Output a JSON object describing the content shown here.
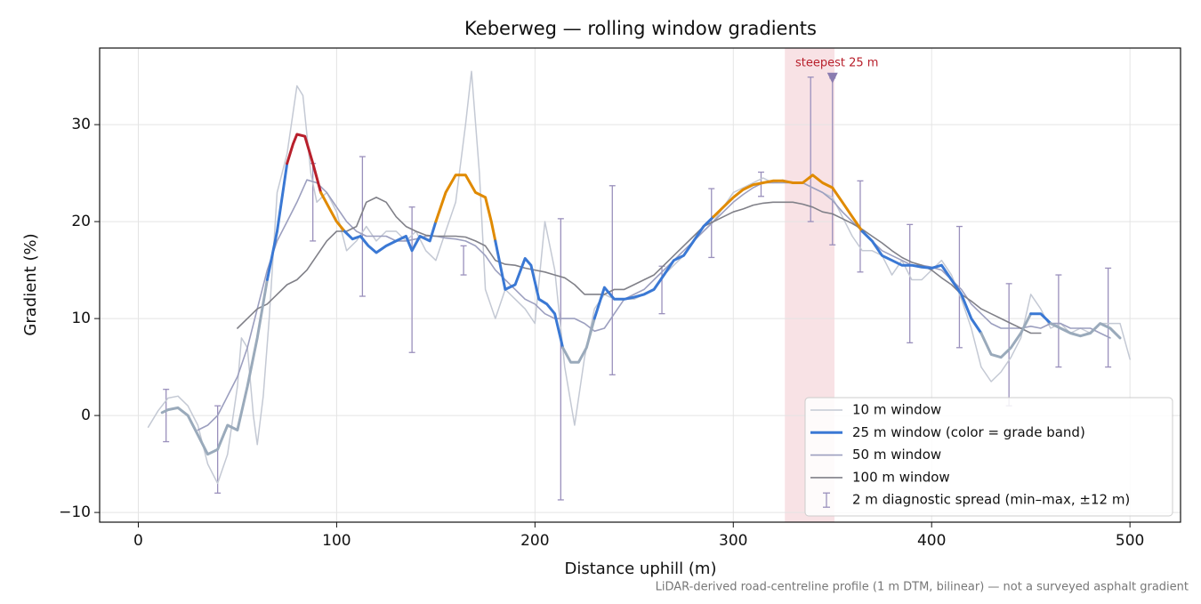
{
  "chart_data": {
    "type": "line",
    "title": "Keberweg — rolling window gradients",
    "x_label": "Distance uphill (m)",
    "y_label": "Gradient (%)",
    "footnote": "LiDAR-derived road-centreline profile (1 m DTM, bilinear) — not a surveyed asphalt gradient",
    "xlim": [
      -19.5,
      525.5
    ],
    "ylim": [
      -11,
      37.9
    ],
    "xticks": [
      0,
      100,
      200,
      300,
      400,
      500
    ],
    "yticks": [
      {
        "value": -10,
        "label": "−10"
      },
      0,
      10,
      20,
      30
    ],
    "grid": true,
    "legend": "lower right",
    "grade_bands": {
      "thresholds": [
        10,
        20,
        25
      ],
      "colors": [
        "#9aaabb",
        "#3a78d4",
        "#e08a00",
        "#b8202c"
      ]
    },
    "shaded_span": [
      326,
      351
    ],
    "annotation": {
      "text": "steepest 25 m",
      "x": 350,
      "y": 34.8,
      "color": "#b8202c"
    },
    "series": [
      {
        "name": "10 m window",
        "color": "#c4c9d4",
        "width": 1.5,
        "x": [
          5,
          10,
          15,
          20,
          25,
          30,
          35,
          40,
          45,
          50,
          52,
          55,
          58,
          60,
          63,
          66,
          70,
          75,
          80,
          83,
          87,
          90,
          95,
          100,
          105,
          110,
          115,
          120,
          125,
          130,
          135,
          140,
          145,
          150,
          155,
          160,
          165,
          168,
          172,
          175,
          180,
          185,
          190,
          195,
          200,
          205,
          210,
          215,
          220,
          225,
          230,
          235,
          240,
          245,
          250,
          255,
          260,
          265,
          270,
          275,
          280,
          285,
          290,
          295,
          300,
          305,
          310,
          315,
          320,
          325,
          330,
          335,
          340,
          345,
          350,
          355,
          360,
          365,
          370,
          375,
          380,
          385,
          390,
          395,
          400,
          405,
          410,
          415,
          420,
          425,
          430,
          435,
          440,
          445,
          450,
          455,
          460,
          465,
          470,
          475,
          480,
          485,
          490,
          495,
          500
        ],
        "values": [
          -1.2,
          0.5,
          1.8,
          2,
          1,
          -1,
          -5,
          -7,
          -4,
          3,
          8,
          7,
          0,
          -3,
          2,
          10,
          23,
          27,
          34,
          33,
          25,
          22,
          23,
          21,
          17,
          18,
          19.5,
          18,
          19,
          19,
          18,
          19,
          17,
          16,
          19,
          22,
          30,
          35.5,
          25,
          13,
          10,
          13,
          12,
          11,
          9.5,
          20,
          15,
          5,
          -1,
          6,
          11,
          12.5,
          12,
          12,
          12,
          12.5,
          13,
          14.5,
          15.5,
          16.5,
          18,
          19,
          20,
          21.5,
          23,
          23.5,
          24,
          24.5,
          24,
          24.3,
          24,
          24,
          23.5,
          23,
          22.5,
          20.5,
          18.5,
          17,
          17,
          16.5,
          14.5,
          16,
          14,
          14,
          15,
          16,
          14.5,
          12,
          9,
          5,
          3.5,
          4.5,
          6,
          8,
          12.5,
          11,
          9,
          9.5,
          8.5,
          9,
          8.5,
          9.5,
          9.5,
          9.5,
          5.8
        ]
      },
      {
        "name": "25 m window (color = grade band)",
        "color": "#3a78d4",
        "width": 3,
        "banded": true,
        "x": [
          12,
          15,
          20,
          25,
          30,
          35,
          40,
          45,
          50,
          55,
          60,
          65,
          70,
          75,
          78,
          80,
          84,
          88,
          92,
          96,
          100,
          104,
          108,
          112,
          116,
          120,
          125,
          130,
          135,
          138,
          142,
          147,
          150,
          155,
          160,
          165,
          170,
          175,
          178,
          180,
          185,
          190,
          195,
          198,
          202,
          206,
          210,
          214,
          218,
          222,
          226,
          230,
          235,
          240,
          245,
          250,
          255,
          260,
          265,
          270,
          275,
          280,
          285,
          290,
          295,
          300,
          305,
          310,
          315,
          320,
          325,
          330,
          335,
          340,
          345,
          350,
          355,
          360,
          365,
          370,
          375,
          380,
          385,
          390,
          395,
          400,
          405,
          410,
          415,
          420,
          425,
          430,
          435,
          440,
          445,
          450,
          455,
          460,
          465,
          470,
          475,
          480,
          485,
          490,
          495
        ],
        "values": [
          0.3,
          0.6,
          0.8,
          0,
          -2,
          -4,
          -3.5,
          -1,
          -1.5,
          3,
          8,
          14,
          19,
          26,
          28,
          29,
          28.8,
          26,
          23,
          21.5,
          20,
          19,
          18.2,
          18.5,
          17.5,
          16.8,
          17.5,
          18,
          18.5,
          17,
          18.5,
          18,
          20,
          23,
          24.8,
          24.8,
          23,
          22.5,
          20,
          18,
          13,
          13.5,
          16.2,
          15.5,
          12,
          11.5,
          10.5,
          7,
          5.5,
          5.5,
          7,
          10,
          13.2,
          12,
          12,
          12.2,
          12.5,
          13,
          14.5,
          16,
          16.5,
          18,
          19.5,
          20.5,
          21.5,
          22.5,
          23.3,
          23.8,
          24,
          24.2,
          24.2,
          24,
          24,
          24.8,
          24,
          23.5,
          22,
          20.5,
          19,
          18,
          16.5,
          16,
          15.5,
          15.5,
          15.3,
          15.2,
          15.5,
          14,
          12.5,
          10,
          8.5,
          6.3,
          6,
          7,
          8.5,
          10.5,
          10.5,
          9.5,
          9,
          8.5,
          8.2,
          8.5,
          9.5,
          9,
          8
        ]
      },
      {
        "name": "50 m window",
        "color": "#9c9fbf",
        "width": 1.6,
        "x": [
          30,
          35,
          40,
          45,
          50,
          55,
          60,
          65,
          70,
          75,
          80,
          85,
          90,
          95,
          100,
          105,
          110,
          115,
          120,
          125,
          130,
          135,
          140,
          145,
          150,
          155,
          160,
          165,
          170,
          175,
          180,
          185,
          190,
          195,
          200,
          205,
          210,
          215,
          220,
          225,
          230,
          235,
          240,
          245,
          250,
          255,
          260,
          265,
          270,
          275,
          280,
          285,
          290,
          295,
          300,
          305,
          310,
          315,
          320,
          325,
          330,
          335,
          340,
          345,
          350,
          355,
          360,
          365,
          370,
          375,
          380,
          385,
          390,
          395,
          400,
          405,
          410,
          415,
          420,
          425,
          430,
          435,
          440,
          445,
          450,
          455,
          460,
          465,
          470,
          475,
          480,
          485,
          490
        ],
        "values": [
          -1.5,
          -1,
          0,
          2,
          4,
          7,
          11,
          15,
          18,
          20,
          22,
          24.3,
          24,
          23,
          21.5,
          20,
          19,
          18.5,
          18.5,
          18.5,
          18,
          18,
          18.2,
          18.5,
          18.5,
          18.3,
          18.2,
          18,
          17.5,
          16.5,
          15,
          14,
          13,
          12,
          11.5,
          10.5,
          10,
          10,
          10,
          9.5,
          8.7,
          9,
          10.5,
          12,
          12.5,
          13,
          14,
          15,
          16,
          17,
          18,
          19,
          20,
          21,
          22,
          22.8,
          23.5,
          24,
          24,
          24,
          24,
          24,
          23.5,
          23,
          22.2,
          21,
          20,
          19,
          18,
          17,
          16.5,
          16,
          15.5,
          15.5,
          15.3,
          15,
          14,
          13,
          11.5,
          10.5,
          9.5,
          9,
          9,
          9,
          9.2,
          9,
          9.5,
          9.5,
          9,
          9,
          9,
          8.5,
          8
        ]
      },
      {
        "name": "100 m window",
        "color": "#808088",
        "width": 1.6,
        "x": [
          50,
          55,
          60,
          65,
          70,
          75,
          80,
          85,
          90,
          95,
          100,
          105,
          110,
          115,
          120,
          125,
          130,
          135,
          140,
          145,
          150,
          155,
          160,
          165,
          170,
          175,
          180,
          185,
          190,
          195,
          200,
          205,
          210,
          215,
          220,
          225,
          230,
          235,
          240,
          245,
          250,
          255,
          260,
          265,
          270,
          275,
          280,
          285,
          290,
          295,
          300,
          305,
          310,
          315,
          320,
          325,
          330,
          335,
          340,
          345,
          350,
          355,
          360,
          365,
          370,
          375,
          380,
          385,
          390,
          395,
          400,
          405,
          410,
          415,
          420,
          425,
          430,
          435,
          440,
          445,
          450,
          455
        ],
        "values": [
          9,
          10,
          11,
          11.5,
          12.5,
          13.5,
          14,
          15,
          16.5,
          18,
          19,
          19,
          19.5,
          22,
          22.5,
          22,
          20.5,
          19.5,
          19,
          18.6,
          18.5,
          18.5,
          18.5,
          18.4,
          18,
          17.5,
          16,
          15.6,
          15.5,
          15.2,
          15,
          14.8,
          14.5,
          14.2,
          13.5,
          12.5,
          12.5,
          12.5,
          13,
          13,
          13.5,
          14,
          14.5,
          15.5,
          16.5,
          17.5,
          18.5,
          19.5,
          20,
          20.5,
          21,
          21.3,
          21.7,
          21.9,
          22,
          22,
          22,
          21.8,
          21.5,
          21,
          20.8,
          20.3,
          19.8,
          19.2,
          18.5,
          17.8,
          17,
          16.3,
          15.8,
          15.5,
          15,
          14.2,
          13.5,
          12.5,
          11.8,
          11,
          10.5,
          10,
          9.5,
          9,
          8.5,
          8.5
        ]
      }
    ],
    "errorbars": {
      "name": "2 m diagnostic spread (min–max, ±12 m)",
      "color": "#9a90bc",
      "x": [
        14,
        40,
        88,
        113,
        138,
        164,
        213,
        239,
        264,
        289,
        314,
        339,
        350,
        364,
        389,
        414,
        439,
        464,
        489
      ],
      "low": [
        -2.7,
        -8,
        18,
        12.3,
        6.5,
        14.5,
        -8.7,
        4.2,
        10.5,
        16.3,
        22.6,
        20,
        17.6,
        14.8,
        7.5,
        7,
        1,
        5,
        5
      ],
      "high": [
        2.7,
        1,
        26,
        26.7,
        21.5,
        17.5,
        20.3,
        23.7,
        15.4,
        23.4,
        25.1,
        34.9,
        34.8,
        24.2,
        19.7,
        19.5,
        13.6,
        14.5,
        15.2
      ]
    }
  }
}
